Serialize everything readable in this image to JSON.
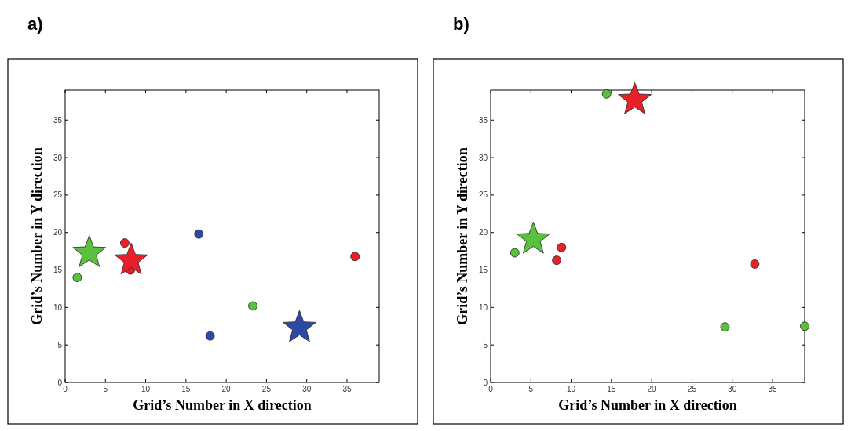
{
  "chart_data": [
    {
      "type": "scatter",
      "title": "a)",
      "xlabel": "Grid’s Number in X direction",
      "ylabel": "Grid’s Number in Y direction",
      "xlim": [
        0,
        39
      ],
      "ylim": [
        0,
        39
      ],
      "xticks": [
        0,
        5,
        10,
        15,
        20,
        25,
        30,
        35
      ],
      "yticks": [
        0,
        5,
        10,
        15,
        20,
        25,
        30,
        35
      ],
      "grid": false,
      "series": [
        {
          "color": "#5bbf3f",
          "marker": "circle",
          "x": [
            1.5,
            23.3
          ],
          "values": [
            14,
            10.2
          ]
        },
        {
          "color": "#e8202a",
          "marker": "circle",
          "x": [
            7.4,
            8.1,
            36
          ],
          "values": [
            18.6,
            15,
            16.8
          ]
        },
        {
          "color": "#2c4aa3",
          "marker": "circle",
          "x": [
            16.6,
            18
          ],
          "values": [
            19.8,
            6.2
          ]
        },
        {
          "color": "#5bbf3f",
          "marker": "star",
          "x": [
            3
          ],
          "values": [
            17.3
          ]
        },
        {
          "color": "#e8202a",
          "marker": "star",
          "x": [
            8.2
          ],
          "values": [
            16.3
          ]
        },
        {
          "color": "#2c4aa3",
          "marker": "star",
          "x": [
            29.1
          ],
          "values": [
            7.3
          ]
        }
      ]
    },
    {
      "type": "scatter",
      "title": "b)",
      "xlabel": "Grid’s Number in X direction",
      "ylabel": "Grid’s Number in Y direction",
      "xlim": [
        0,
        39
      ],
      "ylim": [
        0,
        39
      ],
      "xticks": [
        0,
        5,
        10,
        15,
        20,
        25,
        30,
        35
      ],
      "yticks": [
        0,
        5,
        10,
        15,
        20,
        25,
        30,
        35
      ],
      "grid": false,
      "series": [
        {
          "color": "#5bbf3f",
          "marker": "circle",
          "x": [
            3,
            14.4,
            29.1,
            39
          ],
          "values": [
            17.3,
            38.5,
            7.4,
            7.5
          ]
        },
        {
          "color": "#e8202a",
          "marker": "circle",
          "x": [
            8.2,
            8.8,
            32.8
          ],
          "values": [
            16.3,
            18,
            15.8
          ]
        },
        {
          "color": "#5bbf3f",
          "marker": "star",
          "x": [
            5.3
          ],
          "values": [
            19.1
          ]
        },
        {
          "color": "#e8202a",
          "marker": "star",
          "x": [
            17.9
          ],
          "values": [
            37.7
          ]
        }
      ]
    }
  ]
}
